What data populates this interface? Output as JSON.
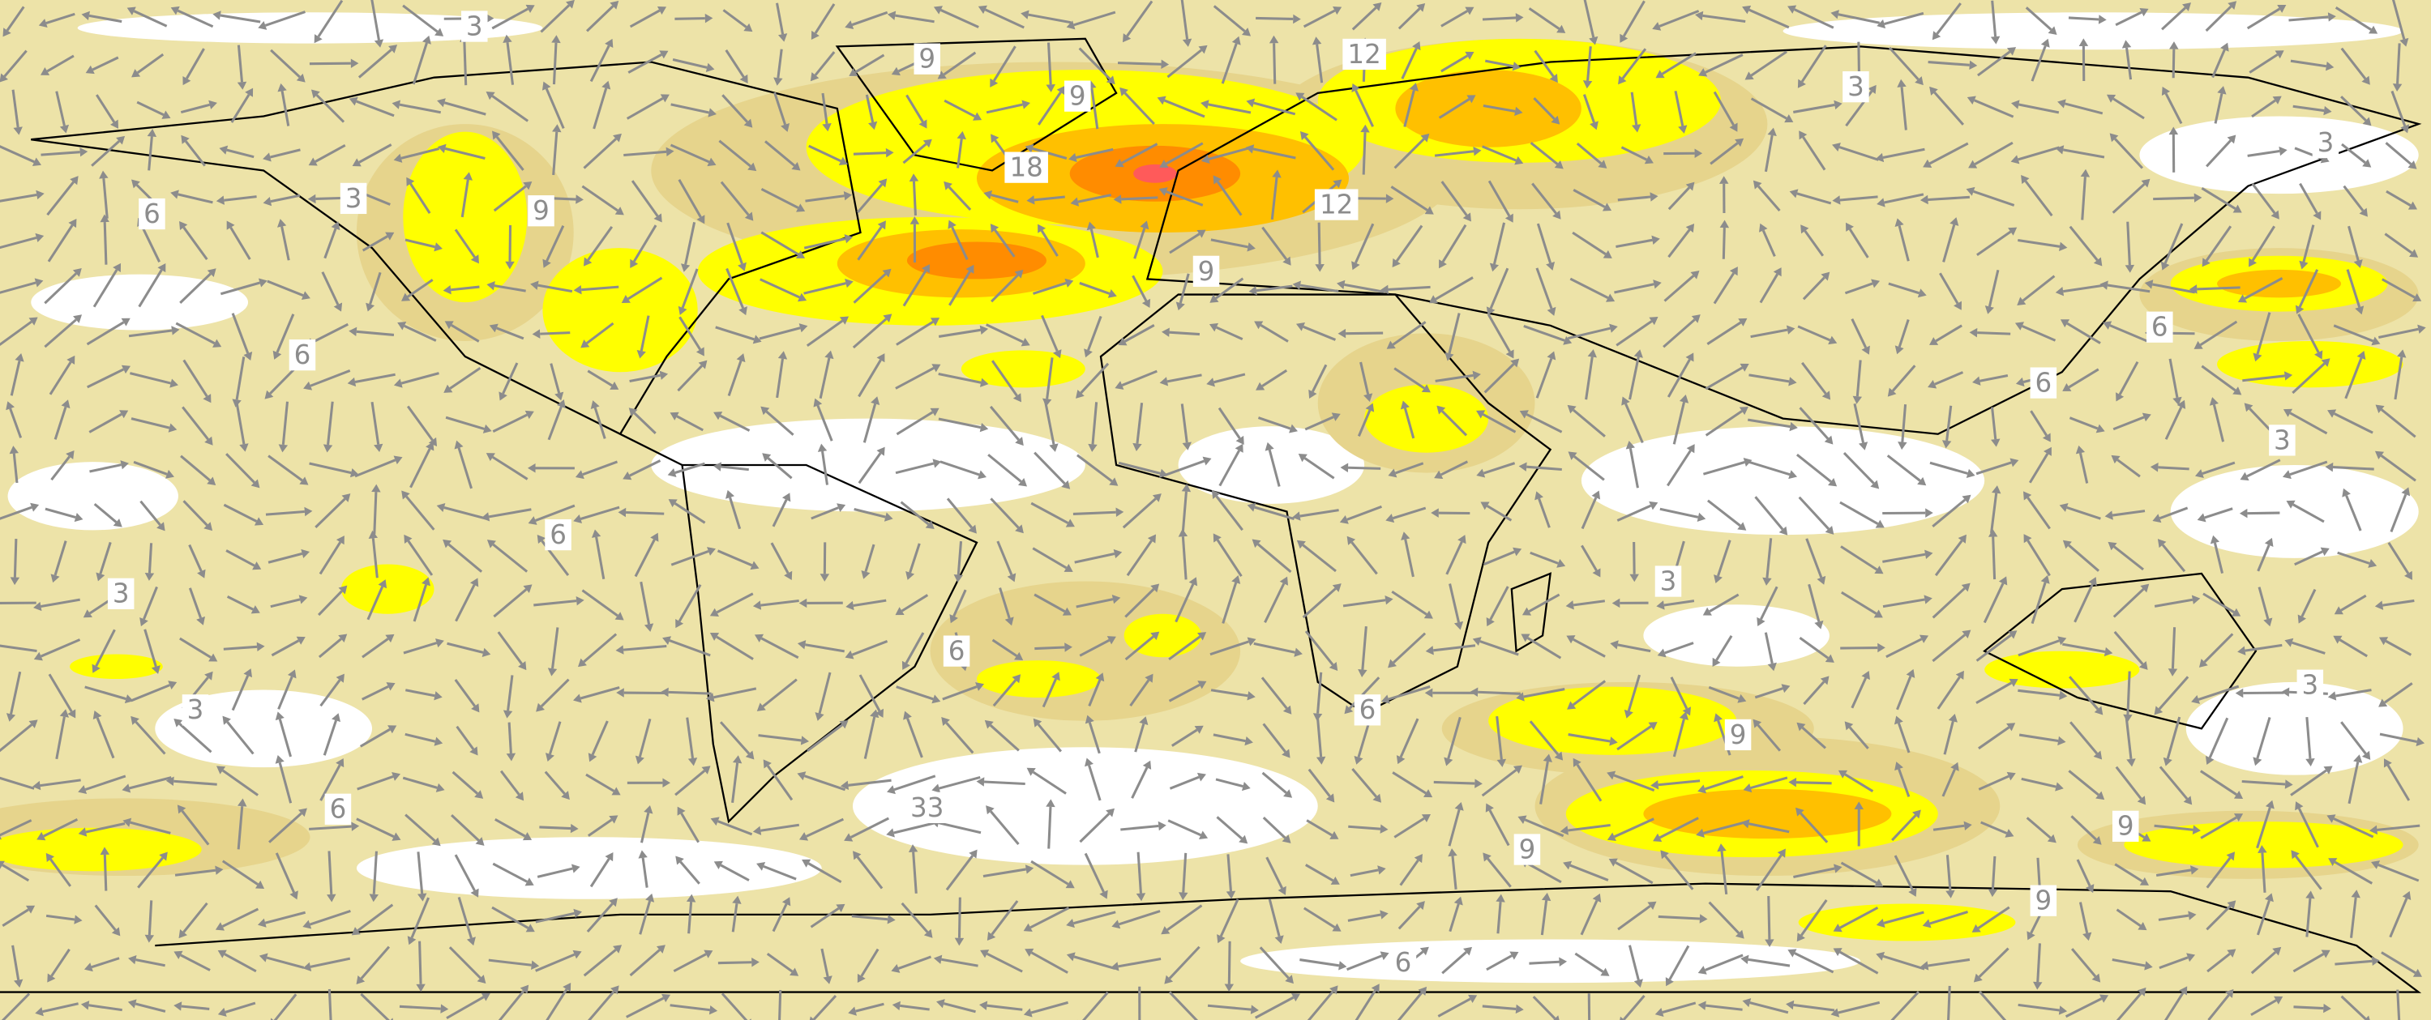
{
  "contour_labels": [
    3,
    9,
    9,
    12,
    3,
    3,
    6,
    3,
    9,
    18,
    12,
    9,
    6,
    6,
    6,
    3,
    6,
    3,
    3,
    6,
    3,
    3,
    6,
    9,
    6,
    33,
    9,
    9,
    9,
    6
  ]
}
